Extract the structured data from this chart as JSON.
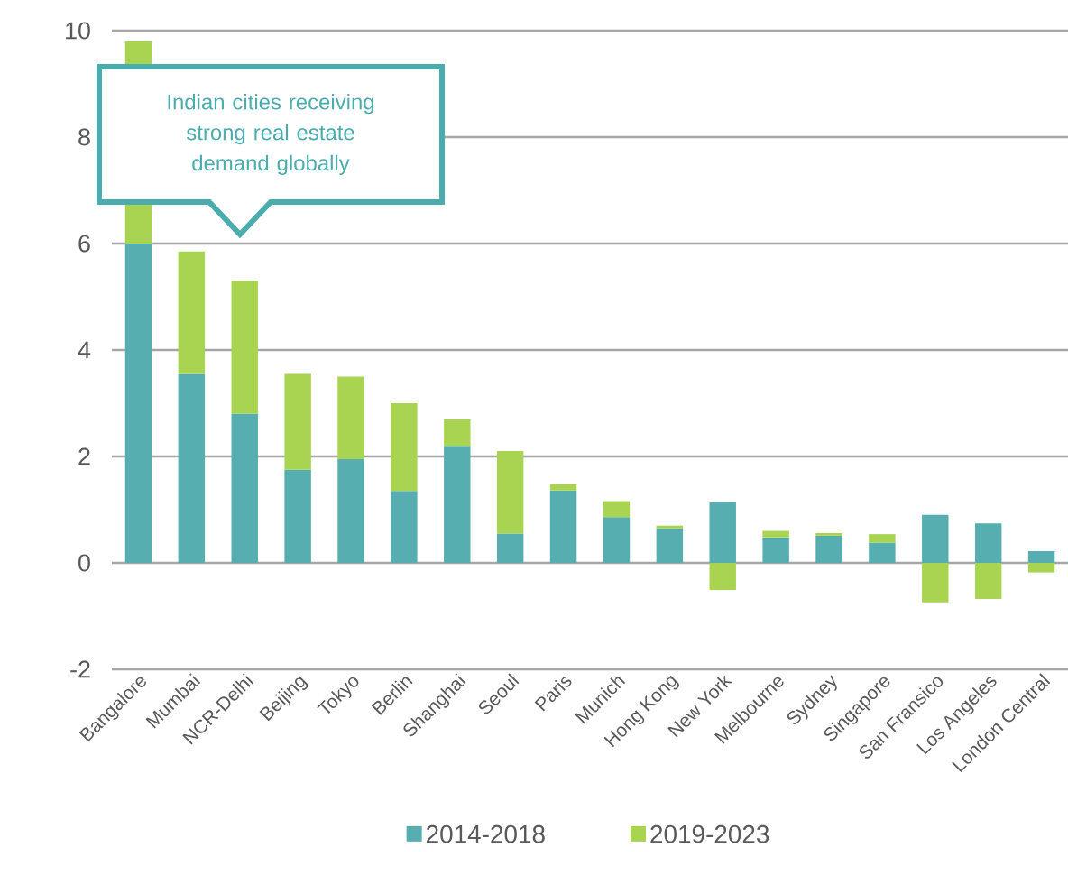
{
  "chart_data": {
    "type": "bar",
    "stacked": true,
    "categories": [
      "Bangalore",
      "Mumbai",
      "NCR-Delhi",
      "Beijing",
      "Tokyo",
      "Berlin",
      "Shanghai",
      "Seoul",
      "Paris",
      "Munich",
      "Hong Kong",
      "New York",
      "Melbourne",
      "Sydney",
      "Singapore",
      "San Fransico",
      "Los Angeles",
      "London Central"
    ],
    "series": [
      {
        "name": "2014-2018",
        "color": "#56aeb0",
        "values": [
          6.0,
          3.55,
          2.8,
          1.75,
          1.95,
          1.35,
          2.2,
          0.55,
          1.36,
          0.86,
          0.65,
          1.14,
          0.48,
          0.51,
          0.38,
          0.9,
          0.74,
          0.22
        ]
      },
      {
        "name": "2019-2023",
        "color": "#a9d452",
        "values": [
          3.8,
          2.3,
          2.5,
          1.8,
          1.55,
          1.65,
          0.5,
          1.55,
          0.12,
          0.3,
          0.05,
          -0.51,
          0.12,
          0.05,
          0.16,
          -0.74,
          -0.68,
          -0.18
        ]
      }
    ],
    "ylim": [
      -2,
      10
    ],
    "yticks": [
      -2,
      0,
      2,
      4,
      6,
      8,
      10
    ],
    "grid": "y",
    "legend": "bottom",
    "annotations": [
      "Indian cities receiving strong real estate demand globally"
    ]
  }
}
